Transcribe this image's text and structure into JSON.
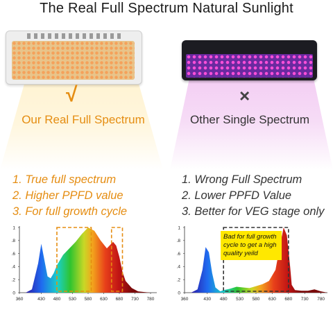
{
  "title": "The Real Full Spectrum Natural Sunlight",
  "left": {
    "mark": "√",
    "label": "Our Real Full Spectrum",
    "points": [
      "1. True full spectrum",
      "2. Higher PPFD value",
      "3. For full growth cycle"
    ]
  },
  "right": {
    "mark": "×",
    "label": "Other Single Spectrum",
    "points": [
      "1. Wrong Full Spectrum",
      "2. Lower PPFD Value",
      "3. Better for VEG stage only"
    ],
    "note": "Bad for full growth cycle to get a high quality yeild"
  },
  "colors": {
    "accent_orange": "#e58d12",
    "text_dark": "#333333",
    "note_yellow": "#ffe800"
  },
  "chart_data": [
    {
      "type": "area",
      "x_ticks": [
        "360",
        "430",
        "480",
        "530",
        "580",
        "630",
        "680",
        "730",
        "780"
      ],
      "y_ticks": [
        "0",
        ".2",
        ".4",
        ".6",
        ".8",
        "1"
      ],
      "ylim": [
        0,
        1
      ],
      "xlim": [
        360,
        800
      ],
      "x": [
        380,
        400,
        420,
        430,
        440,
        450,
        460,
        470,
        480,
        500,
        520,
        540,
        560,
        580,
        600,
        620,
        640,
        660,
        670,
        680,
        690,
        700,
        720,
        740,
        760,
        780,
        800
      ],
      "values": [
        0,
        0.05,
        0.45,
        0.75,
        0.5,
        0.25,
        0.22,
        0.3,
        0.42,
        0.58,
        0.68,
        0.78,
        0.9,
        1.0,
        0.95,
        0.8,
        0.68,
        0.78,
        0.72,
        0.55,
        0.32,
        0.18,
        0.07,
        0.02,
        0.01,
        0,
        0
      ],
      "highlight_ranges": [
        [
          480,
          590
        ],
        [
          655,
          690
        ]
      ]
    },
    {
      "type": "area",
      "x_ticks": [
        "360",
        "430",
        "480",
        "530",
        "580",
        "630",
        "680",
        "730",
        "780"
      ],
      "y_ticks": [
        "0",
        ".2",
        ".4",
        ".6",
        ".8",
        "1"
      ],
      "ylim": [
        0,
        1
      ],
      "xlim": [
        360,
        800
      ],
      "x": [
        380,
        400,
        415,
        425,
        435,
        445,
        455,
        470,
        480,
        500,
        520,
        540,
        560,
        580,
        600,
        620,
        640,
        655,
        665,
        675,
        685,
        690,
        700,
        720,
        740,
        760,
        780,
        800
      ],
      "values": [
        0,
        0.05,
        0.35,
        0.7,
        0.62,
        0.3,
        0.08,
        0.02,
        0.04,
        0.06,
        0.09,
        0.08,
        0.07,
        0.1,
        0.13,
        0.18,
        0.35,
        0.75,
        1.0,
        0.88,
        0.4,
        0.12,
        0.04,
        0.03,
        0.03,
        0.05,
        0.02,
        0
      ],
      "highlight_ranges": [
        [
          480,
          680
        ]
      ]
    }
  ]
}
